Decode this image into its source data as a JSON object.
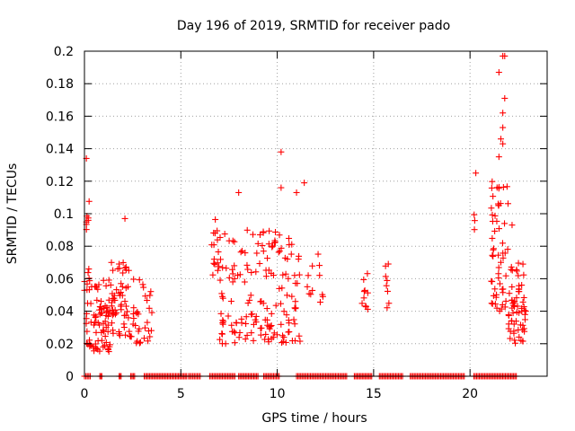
{
  "chart_data": {
    "type": "scatter",
    "title": "Day 196 of 2019, SRMTID for receiver pado",
    "xlabel": "GPS time / hours",
    "ylabel": "SRMTID / TECUs",
    "xlim": [
      0,
      24
    ],
    "ylim": [
      0,
      0.2
    ],
    "xticks": [
      0,
      5,
      10,
      15,
      20
    ],
    "xtick_labels": [
      "0",
      "5",
      "10",
      "15",
      "20"
    ],
    "yticks": [
      0,
      0.02,
      0.04,
      0.06,
      0.08,
      0.1,
      0.12,
      0.14,
      0.16,
      0.18,
      0.2
    ],
    "ytick_labels": [
      "0",
      "0.02",
      "0.04",
      "0.06",
      "0.08",
      "0.1",
      "0.12",
      "0.14",
      "0.16",
      "0.18",
      "0.2"
    ],
    "grid": true,
    "marker": "+",
    "color": "#ff0000",
    "series": [
      {
        "name": "SRMTID",
        "clusters": [
          {
            "x_range": [
              0.0,
              1.5
            ],
            "y_range": [
              0.015,
              0.06
            ],
            "count": 90,
            "zero_count": 0
          },
          {
            "x_range": [
              0.1,
              0.3
            ],
            "y_range": [
              0.06,
              0.11
            ],
            "count": 10
          },
          {
            "x_range": [
              1.4,
              2.3
            ],
            "y_range": [
              0.025,
              0.07
            ],
            "count": 45
          },
          {
            "x_range": [
              2.3,
              3.5
            ],
            "y_range": [
              0.02,
              0.06
            ],
            "count": 35
          },
          {
            "x_range": [
              6.6,
              7.0
            ],
            "y_range": [
              0.06,
              0.1
            ],
            "count": 15
          },
          {
            "x_range": [
              7.0,
              11.2
            ],
            "y_range": [
              0.02,
              0.09
            ],
            "count": 160
          },
          {
            "x_range": [
              11.5,
              12.4
            ],
            "y_range": [
              0.04,
              0.08
            ],
            "count": 12
          },
          {
            "x_range": [
              14.4,
              14.7
            ],
            "y_range": [
              0.04,
              0.07
            ],
            "count": 10
          },
          {
            "x_range": [
              15.6,
              15.8
            ],
            "y_range": [
              0.04,
              0.07
            ],
            "count": 8
          },
          {
            "x_range": [
              20.2,
              20.3
            ],
            "y_range": [
              0.09,
              0.1
            ],
            "count": 3
          },
          {
            "x_range": [
              21.1,
              22.2
            ],
            "y_range": [
              0.04,
              0.12
            ],
            "count": 60
          },
          {
            "x_range": [
              22.0,
              22.9
            ],
            "y_range": [
              0.02,
              0.07
            ],
            "count": 60
          }
        ],
        "outliers": [
          {
            "x": 0.1,
            "y": 0.134
          },
          {
            "x": 1.4,
            "y": 0.07
          },
          {
            "x": 2.1,
            "y": 0.097
          },
          {
            "x": 8.0,
            "y": 0.113
          },
          {
            "x": 10.2,
            "y": 0.138
          },
          {
            "x": 10.2,
            "y": 0.116
          },
          {
            "x": 11.0,
            "y": 0.113
          },
          {
            "x": 11.4,
            "y": 0.119
          },
          {
            "x": 20.3,
            "y": 0.125
          },
          {
            "x": 21.7,
            "y": 0.197
          },
          {
            "x": 21.8,
            "y": 0.197
          },
          {
            "x": 21.5,
            "y": 0.187
          },
          {
            "x": 21.8,
            "y": 0.171
          },
          {
            "x": 21.7,
            "y": 0.162
          },
          {
            "x": 21.7,
            "y": 0.153
          },
          {
            "x": 21.6,
            "y": 0.146
          },
          {
            "x": 21.7,
            "y": 0.143
          },
          {
            "x": 21.5,
            "y": 0.135
          }
        ],
        "zero_segments": [
          [
            0.0,
            0.3
          ],
          [
            0.8,
            0.9
          ],
          [
            1.8,
            1.9
          ],
          [
            2.4,
            2.6
          ],
          [
            3.1,
            5.3
          ],
          [
            5.4,
            6.0
          ],
          [
            6.5,
            7.8
          ],
          [
            8.0,
            9.0
          ],
          [
            9.3,
            10.1
          ],
          [
            11.0,
            13.6
          ],
          [
            14.0,
            14.9
          ],
          [
            15.3,
            16.5
          ],
          [
            16.9,
            19.7
          ],
          [
            20.2,
            22.4
          ]
        ]
      }
    ]
  }
}
